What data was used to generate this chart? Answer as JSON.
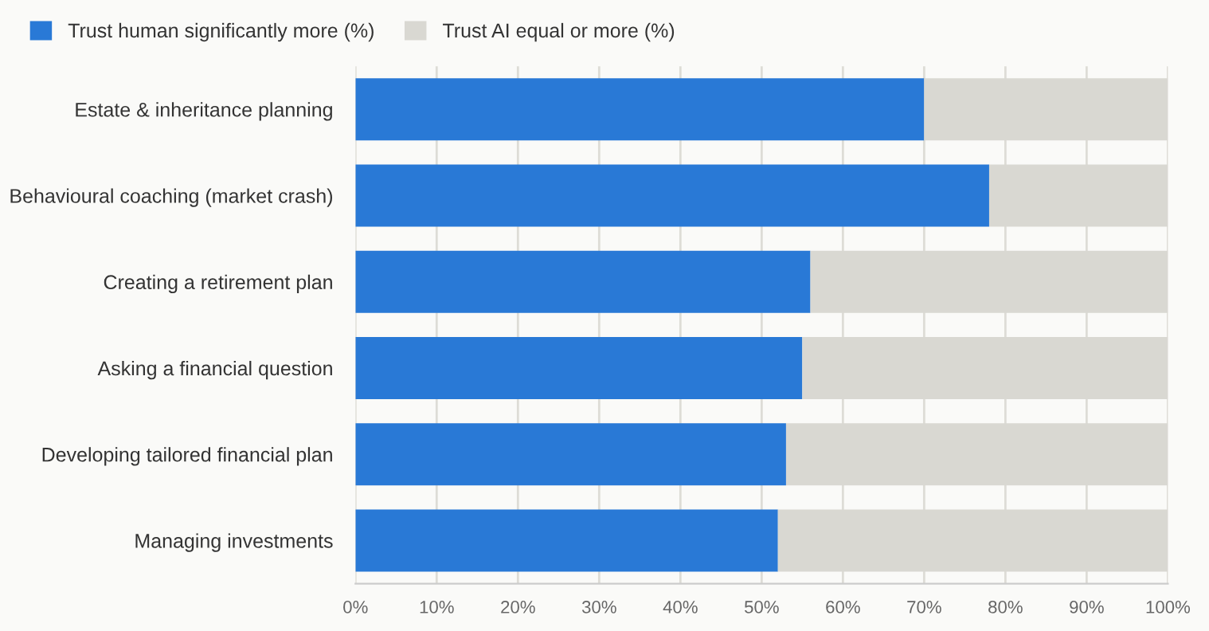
{
  "chart_data": {
    "type": "bar",
    "orientation": "horizontal",
    "stacked": true,
    "categories": [
      "Estate & inheritance planning",
      "Behavioural coaching (market crash)",
      "Creating a retirement plan",
      "Asking a financial question",
      "Developing tailored financial plan",
      "Managing investments"
    ],
    "series": [
      {
        "name": "Trust human significantly more (%)",
        "color": "#2979d6",
        "values": [
          70,
          78,
          56,
          55,
          53,
          52
        ]
      },
      {
        "name": "Trust AI equal or more (%)",
        "color": "#d9d8d2",
        "values": [
          30,
          22,
          44,
          45,
          47,
          48
        ]
      }
    ],
    "xlim": [
      0,
      100
    ],
    "xticks": [
      {
        "value": 0,
        "label": "0%"
      },
      {
        "value": 10,
        "label": "10%"
      },
      {
        "value": 20,
        "label": "20%"
      },
      {
        "value": 30,
        "label": "30%"
      },
      {
        "value": 40,
        "label": "40%"
      },
      {
        "value": 50,
        "label": "50%"
      },
      {
        "value": 60,
        "label": "60%"
      },
      {
        "value": 70,
        "label": "70%"
      },
      {
        "value": 80,
        "label": "80%"
      },
      {
        "value": 90,
        "label": "90%"
      },
      {
        "value": 100,
        "label": "100%"
      }
    ],
    "grid": "x",
    "legend": "top left"
  }
}
